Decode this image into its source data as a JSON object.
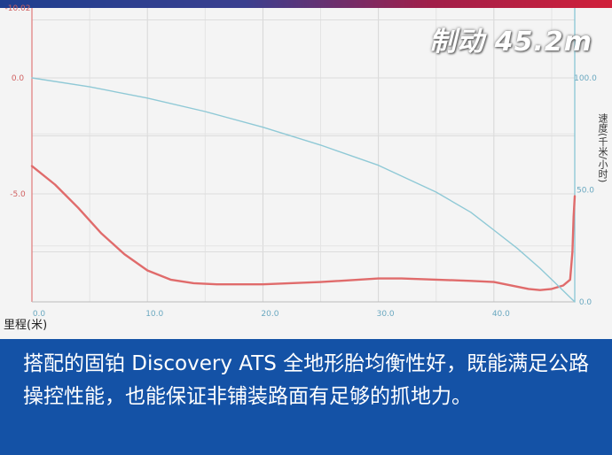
{
  "header": {
    "stamp": "制动 45.2m"
  },
  "chart_data": {
    "type": "line",
    "xlabel": "里程(米)",
    "y2label": "速度(千米/小时)",
    "xlim": [
      0,
      47
    ],
    "ylim_left": [
      -10,
      0
    ],
    "ylim_right": [
      0,
      100
    ],
    "x_ticks": [
      "0.0",
      "10.0",
      "20.0",
      "30.0",
      "40.0"
    ],
    "y_left_ticks": [
      "0.0",
      "-5.0"
    ],
    "y_left_top_partial": "-10.02",
    "y_right_ticks": [
      "100.0",
      "50.0",
      "0.0"
    ],
    "grid": true,
    "series": [
      {
        "axis": "left",
        "color": "#e06b6b",
        "x": [
          0,
          2,
          4,
          6,
          8,
          10,
          12,
          14,
          16,
          20,
          25,
          30,
          32,
          35,
          38,
          40,
          41,
          42,
          43,
          44,
          45,
          46,
          46.6,
          46.8,
          46.9,
          47
        ],
        "y": [
          -3.8,
          -4.6,
          -5.6,
          -6.7,
          -7.6,
          -8.3,
          -8.7,
          -8.85,
          -8.9,
          -8.9,
          -8.8,
          -8.65,
          -8.65,
          -8.7,
          -8.75,
          -8.8,
          -8.9,
          -9.0,
          -9.1,
          -9.15,
          -9.1,
          -8.95,
          -8.7,
          -7.5,
          -6.0,
          -5.1
        ]
      },
      {
        "axis": "right",
        "color": "#8fc9d6",
        "x": [
          0,
          5,
          10,
          15,
          20,
          25,
          30,
          35,
          38,
          40,
          42,
          44,
          45,
          46,
          46.5,
          47
        ],
        "y": [
          100,
          96,
          91,
          85,
          78,
          70,
          61,
          49,
          40,
          32,
          24,
          15,
          10,
          5,
          2.5,
          0
        ]
      }
    ]
  },
  "caption": {
    "text": "搭配的固铂 Discovery ATS 全地形胎均衡性好，既能满足公路操控性能，也能保证非铺装路面有足够的抓地力。"
  }
}
